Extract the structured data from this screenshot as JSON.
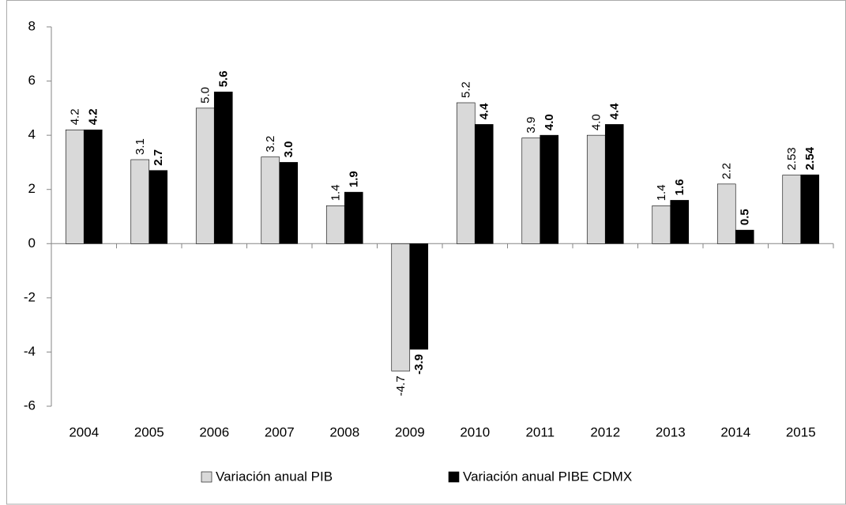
{
  "chart_data": {
    "type": "bar",
    "categories": [
      "2004",
      "2005",
      "2006",
      "2007",
      "2008",
      "2009",
      "2010",
      "2011",
      "2012",
      "2013",
      "2014",
      "2015"
    ],
    "series": [
      {
        "name": "Variación anual PIB",
        "color": "#d9d9d9",
        "values": [
          4.2,
          3.1,
          5.0,
          3.2,
          1.4,
          -4.7,
          5.2,
          3.9,
          4.0,
          1.4,
          2.2,
          2.53
        ],
        "value_labels": [
          "4.2",
          "3.1",
          "5.0",
          "3.2",
          "1.4",
          "-4.7",
          "5.2",
          "3.9",
          "4.0",
          "1.4",
          "2.2",
          "2.53"
        ]
      },
      {
        "name": "Variación anual PIBE CDMX",
        "color": "#000000",
        "values": [
          4.2,
          2.7,
          5.6,
          3.0,
          1.9,
          -3.9,
          4.4,
          4.0,
          4.4,
          1.6,
          0.5,
          2.54
        ],
        "value_labels": [
          "4.2",
          "2.7",
          "5.6",
          "3.0",
          "1.9",
          "-3.9",
          "4.4",
          "4.0",
          "4.4",
          "1.6",
          "0.5",
          "2.54"
        ]
      }
    ],
    "ylim": [
      -6,
      8
    ],
    "yticks": [
      -6,
      -4,
      -2,
      0,
      2,
      4,
      6,
      8
    ],
    "grid": false,
    "legend": "bottom"
  }
}
